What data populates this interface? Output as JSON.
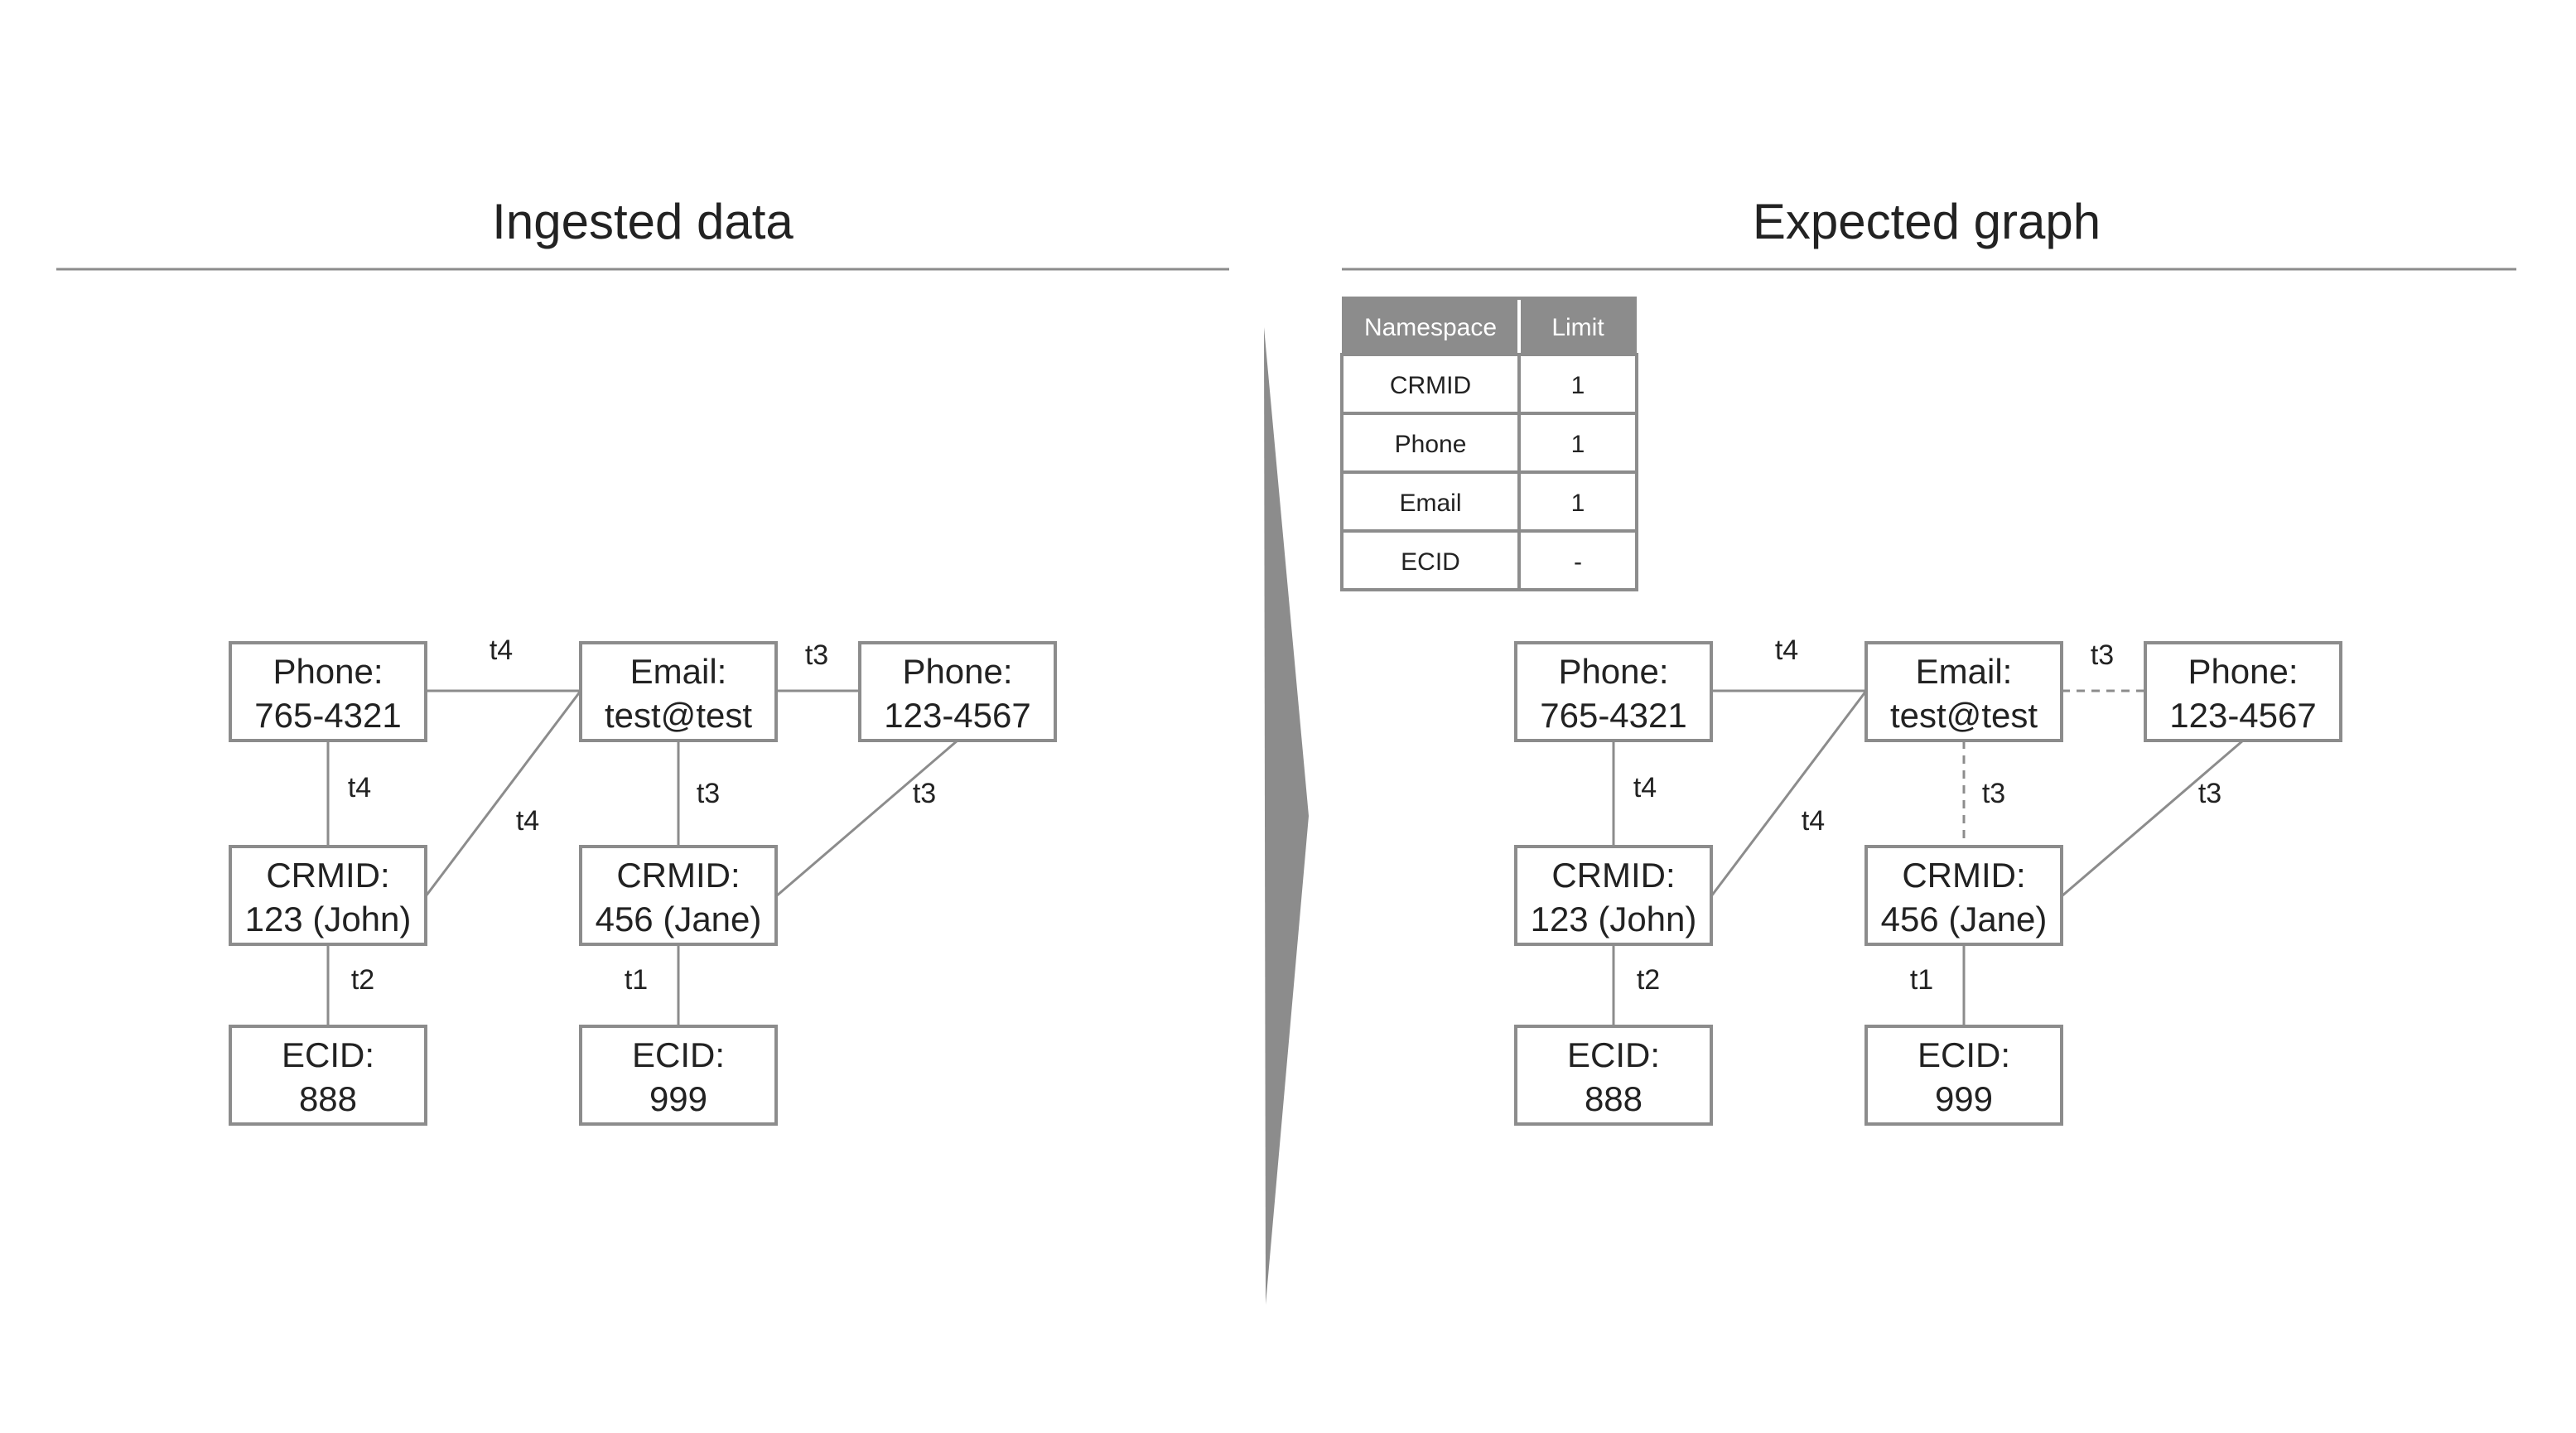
{
  "left_panel": {
    "title": "Ingested data",
    "nodes": [
      {
        "id": "phone1",
        "label": "Phone:",
        "value": "765-4321"
      },
      {
        "id": "email",
        "label": "Email:",
        "value": "test@test"
      },
      {
        "id": "phone2",
        "label": "Phone:",
        "value": "123-4567"
      },
      {
        "id": "crm_john",
        "label": "CRMID:",
        "value": "123 (John)"
      },
      {
        "id": "crm_jane",
        "label": "CRMID:",
        "value": "456 (Jane)"
      },
      {
        "id": "ecid888",
        "label": "ECID:",
        "value": "888"
      },
      {
        "id": "ecid999",
        "label": "ECID:",
        "value": "999"
      }
    ],
    "edges": [
      {
        "from": "phone1",
        "to": "email",
        "label": "t4",
        "style": "solid"
      },
      {
        "from": "email",
        "to": "phone2",
        "label": "t3",
        "style": "solid"
      },
      {
        "from": "phone1",
        "to": "crm_john",
        "label": "t4",
        "style": "solid"
      },
      {
        "from": "email",
        "to": "crm_john",
        "label": "t4",
        "style": "solid"
      },
      {
        "from": "email",
        "to": "crm_jane",
        "label": "t3",
        "style": "solid"
      },
      {
        "from": "phone2",
        "to": "crm_jane",
        "label": "t3",
        "style": "solid"
      },
      {
        "from": "crm_john",
        "to": "ecid888",
        "label": "t2",
        "style": "solid"
      },
      {
        "from": "crm_jane",
        "to": "ecid999",
        "label": "t1",
        "style": "solid"
      }
    ]
  },
  "right_panel": {
    "title": "Expected graph",
    "limits_table": {
      "headers": [
        "Namespace",
        "Limit"
      ],
      "rows": [
        [
          "CRMID",
          "1"
        ],
        [
          "Phone",
          "1"
        ],
        [
          "Email",
          "1"
        ],
        [
          "ECID",
          "-"
        ]
      ]
    },
    "nodes": [
      {
        "id": "phone1",
        "label": "Phone:",
        "value": "765-4321"
      },
      {
        "id": "email",
        "label": "Email:",
        "value": "test@test"
      },
      {
        "id": "phone2",
        "label": "Phone:",
        "value": "123-4567"
      },
      {
        "id": "crm_john",
        "label": "CRMID:",
        "value": "123 (John)"
      },
      {
        "id": "crm_jane",
        "label": "CRMID:",
        "value": "456 (Jane)"
      },
      {
        "id": "ecid888",
        "label": "ECID:",
        "value": "888"
      },
      {
        "id": "ecid999",
        "label": "ECID:",
        "value": "999"
      }
    ],
    "edges": [
      {
        "from": "phone1",
        "to": "email",
        "label": "t4",
        "style": "solid"
      },
      {
        "from": "email",
        "to": "phone2",
        "label": "t3",
        "style": "dashed"
      },
      {
        "from": "phone1",
        "to": "crm_john",
        "label": "t4",
        "style": "solid"
      },
      {
        "from": "email",
        "to": "crm_john",
        "label": "t4",
        "style": "solid"
      },
      {
        "from": "email",
        "to": "crm_jane",
        "label": "t3",
        "style": "dashed"
      },
      {
        "from": "phone2",
        "to": "crm_jane",
        "label": "t3",
        "style": "solid"
      },
      {
        "from": "crm_john",
        "to": "ecid888",
        "label": "t2",
        "style": "solid"
      },
      {
        "from": "crm_jane",
        "to": "ecid999",
        "label": "t1",
        "style": "solid"
      }
    ]
  },
  "colors": {
    "line": "#8c8c8c",
    "text": "#222222",
    "header_text": "#ffffff"
  }
}
